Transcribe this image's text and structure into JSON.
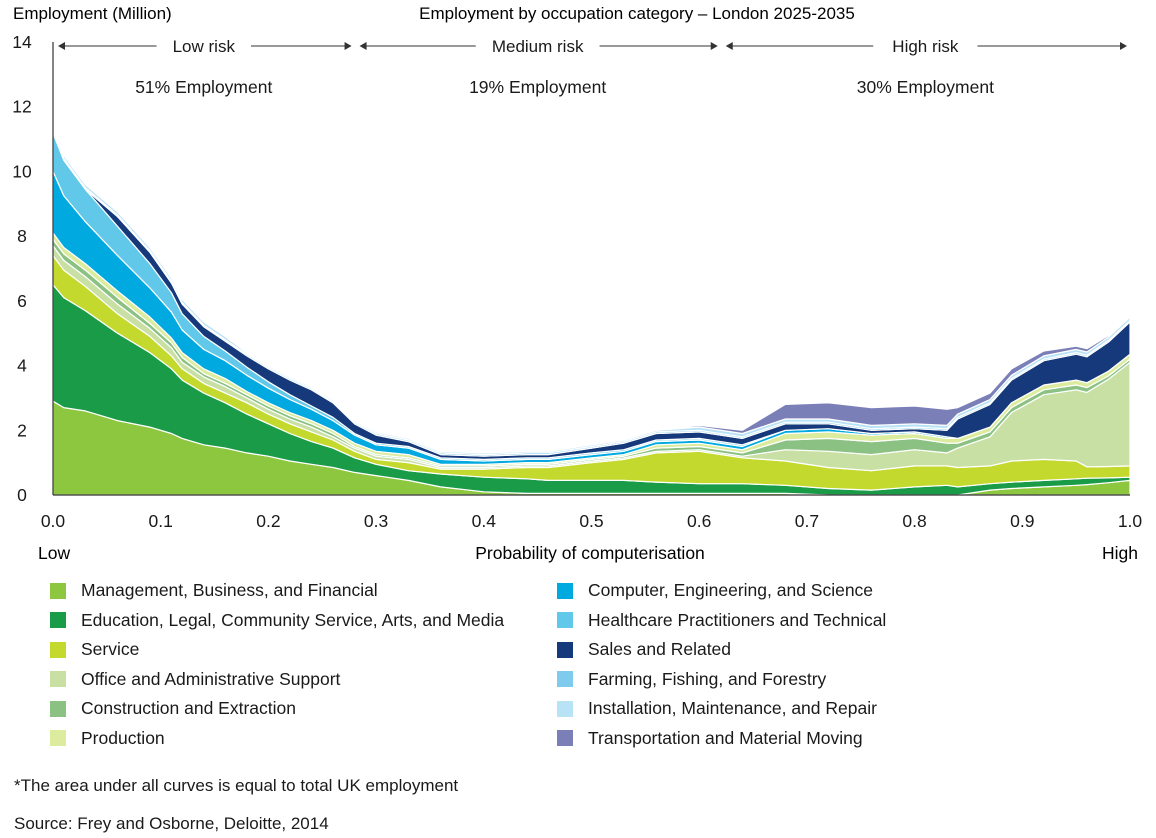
{
  "chart_data": {
    "type": "area",
    "title": "Employment by occupation category – London 2025-2035",
    "ylabel": "Employment (Million)",
    "xlabel": "Probability of computerisation",
    "x_low_label": "Low",
    "x_high_label": "High",
    "xlim": [
      0,
      1
    ],
    "ylim": [
      0,
      14
    ],
    "x_ticks": [
      "0.0",
      "0.1",
      "0.2",
      "0.3",
      "0.4",
      "0.5",
      "0.6",
      "0.7",
      "0.8",
      "0.9",
      "1.0"
    ],
    "y_ticks": [
      "0",
      "2",
      "4",
      "6",
      "8",
      "10",
      "12",
      "14"
    ],
    "grid": false,
    "stacked": true,
    "risk_bands": [
      {
        "label": "Low risk",
        "from": 0.0,
        "to": 0.28,
        "share": "51% Employment"
      },
      {
        "label": "Medium risk",
        "from": 0.28,
        "to": 0.62,
        "share": "19% Employment"
      },
      {
        "label": "High risk",
        "from": 0.62,
        "to": 1.0,
        "share": "30% Employment"
      }
    ],
    "x": [
      0.0,
      0.01,
      0.03,
      0.06,
      0.09,
      0.11,
      0.12,
      0.14,
      0.16,
      0.18,
      0.2,
      0.22,
      0.24,
      0.26,
      0.28,
      0.3,
      0.33,
      0.36,
      0.4,
      0.44,
      0.46,
      0.5,
      0.53,
      0.56,
      0.6,
      0.64,
      0.68,
      0.72,
      0.76,
      0.8,
      0.83,
      0.84,
      0.87,
      0.89,
      0.92,
      0.95,
      0.96,
      0.98,
      1.0
    ],
    "series": [
      {
        "name": "Management, Business, and Financial",
        "color": "#8dc63f",
        "values": [
          2.9,
          2.7,
          2.6,
          2.3,
          2.1,
          1.9,
          1.75,
          1.55,
          1.45,
          1.3,
          1.2,
          1.05,
          0.95,
          0.85,
          0.7,
          0.6,
          0.45,
          0.25,
          0.1,
          0.05,
          0.05,
          0.05,
          0.05,
          0.05,
          0.05,
          0.05,
          0.05,
          0.0,
          0.0,
          0.0,
          0.0,
          0.0,
          0.15,
          0.2,
          0.25,
          0.3,
          0.32,
          0.38,
          0.45
        ]
      },
      {
        "name": "Education, Legal, Community Service, Arts, and Media",
        "color": "#1a9b48",
        "values": [
          3.6,
          3.4,
          3.1,
          2.7,
          2.3,
          2.0,
          1.8,
          1.6,
          1.4,
          1.2,
          1.0,
          0.85,
          0.7,
          0.6,
          0.45,
          0.35,
          0.3,
          0.4,
          0.45,
          0.45,
          0.4,
          0.4,
          0.4,
          0.35,
          0.3,
          0.3,
          0.25,
          0.2,
          0.15,
          0.25,
          0.3,
          0.25,
          0.2,
          0.2,
          0.2,
          0.2,
          0.2,
          0.15,
          0.1
        ]
      },
      {
        "name": "Service",
        "color": "#c4d92e",
        "values": [
          0.9,
          0.85,
          0.75,
          0.6,
          0.5,
          0.4,
          0.35,
          0.3,
          0.3,
          0.35,
          0.3,
          0.3,
          0.3,
          0.25,
          0.2,
          0.15,
          0.25,
          0.15,
          0.25,
          0.35,
          0.4,
          0.55,
          0.65,
          0.9,
          1.0,
          0.8,
          0.75,
          0.65,
          0.6,
          0.65,
          0.6,
          0.6,
          0.55,
          0.65,
          0.65,
          0.55,
          0.35,
          0.35,
          0.35
        ]
      },
      {
        "name": "Office and Administrative Support",
        "color": "#c9e0a4",
        "values": [
          0.3,
          0.3,
          0.3,
          0.3,
          0.25,
          0.25,
          0.2,
          0.2,
          0.2,
          0.15,
          0.15,
          0.15,
          0.15,
          0.1,
          0.1,
          0.1,
          0.1,
          0.05,
          0.05,
          0.05,
          0.05,
          0.05,
          0.05,
          0.05,
          0.05,
          0.05,
          0.35,
          0.5,
          0.5,
          0.5,
          0.4,
          0.6,
          0.9,
          1.5,
          2.0,
          2.2,
          2.3,
          2.7,
          3.2
        ]
      },
      {
        "name": "Construction and Extraction",
        "color": "#8bc283",
        "values": [
          0.2,
          0.2,
          0.2,
          0.2,
          0.15,
          0.15,
          0.15,
          0.1,
          0.1,
          0.1,
          0.1,
          0.1,
          0.1,
          0.1,
          0.05,
          0.05,
          0.05,
          0.05,
          0.05,
          0.05,
          0.05,
          0.05,
          0.05,
          0.1,
          0.1,
          0.1,
          0.3,
          0.4,
          0.4,
          0.35,
          0.3,
          0.15,
          0.15,
          0.15,
          0.15,
          0.15,
          0.15,
          0.1,
          0.1
        ]
      },
      {
        "name": "Production",
        "color": "#dcec9f",
        "values": [
          0.2,
          0.2,
          0.2,
          0.2,
          0.2,
          0.15,
          0.15,
          0.15,
          0.15,
          0.1,
          0.1,
          0.1,
          0.1,
          0.1,
          0.1,
          0.1,
          0.1,
          0.05,
          0.05,
          0.05,
          0.05,
          0.05,
          0.05,
          0.1,
          0.1,
          0.1,
          0.2,
          0.2,
          0.2,
          0.15,
          0.15,
          0.15,
          0.15,
          0.15,
          0.15,
          0.15,
          0.15,
          0.15,
          0.15
        ]
      },
      {
        "name": "Computer, Engineering, and Science",
        "color": "#00a9e0",
        "values": [
          1.9,
          1.6,
          1.3,
          1.1,
          0.9,
          0.8,
          0.7,
          0.6,
          0.55,
          0.5,
          0.45,
          0.4,
          0.35,
          0.3,
          0.25,
          0.2,
          0.2,
          0.15,
          0.1,
          0.1,
          0.1,
          0.1,
          0.1,
          0.1,
          0.1,
          0.1,
          0.1,
          0.1,
          0.05,
          0.05,
          0.05,
          0.0,
          0.0,
          0.0,
          0.0,
          0.0,
          0.0,
          0.0,
          0.0
        ]
      },
      {
        "name": "Healthcare Practitioners and Technical",
        "color": "#62c8ea",
        "values": [
          1.2,
          1.1,
          1.0,
          0.9,
          0.75,
          0.6,
          0.5,
          0.4,
          0.3,
          0.25,
          0.2,
          0.15,
          0.1,
          0.1,
          0.05,
          0.05,
          0.05,
          0.05,
          0.05,
          0.05,
          0.05,
          0.05,
          0.05,
          0.05,
          0.05,
          0.05,
          0.0,
          0.0,
          0.0,
          0.0,
          0.0,
          0.0,
          0.0,
          0.0,
          0.0,
          0.0,
          0.0,
          0.0,
          0.0
        ]
      },
      {
        "name": "Sales and Related",
        "color": "#15397a",
        "values": [
          0.0,
          0.0,
          0.0,
          0.3,
          0.35,
          0.3,
          0.3,
          0.3,
          0.3,
          0.35,
          0.4,
          0.45,
          0.5,
          0.45,
          0.3,
          0.25,
          0.15,
          0.1,
          0.1,
          0.1,
          0.1,
          0.15,
          0.2,
          0.2,
          0.2,
          0.2,
          0.2,
          0.15,
          0.1,
          0.1,
          0.2,
          0.6,
          0.7,
          0.7,
          0.75,
          0.8,
          0.8,
          0.9,
          1.0
        ]
      },
      {
        "name": "Farming, Fishing, and Forestry",
        "color": "#7ecbee",
        "values": [
          0.05,
          0.05,
          0.05,
          0.05,
          0.05,
          0.05,
          0.05,
          0.05,
          0.05,
          0.05,
          0.05,
          0.05,
          0.05,
          0.05,
          0.05,
          0.05,
          0.05,
          0.05,
          0.05,
          0.05,
          0.05,
          0.05,
          0.05,
          0.05,
          0.05,
          0.05,
          0.05,
          0.05,
          0.05,
          0.05,
          0.05,
          0.05,
          0.05,
          0.05,
          0.05,
          0.05,
          0.05,
          0.05,
          0.05
        ]
      },
      {
        "name": "Installation, Maintenance, and Repair",
        "color": "#b8e2f5",
        "values": [
          0.1,
          0.1,
          0.1,
          0.1,
          0.1,
          0.1,
          0.1,
          0.1,
          0.1,
          0.05,
          0.05,
          0.05,
          0.05,
          0.05,
          0.05,
          0.05,
          0.05,
          0.05,
          0.05,
          0.05,
          0.05,
          0.05,
          0.05,
          0.05,
          0.1,
          0.1,
          0.1,
          0.1,
          0.1,
          0.1,
          0.1,
          0.1,
          0.1,
          0.1,
          0.1,
          0.1,
          0.1,
          0.1,
          0.1
        ]
      },
      {
        "name": "Transportation and Material Moving",
        "color": "#7b7fb8",
        "values": [
          0.0,
          0.0,
          0.0,
          0.0,
          0.0,
          0.0,
          0.0,
          0.0,
          0.0,
          0.0,
          0.0,
          0.0,
          0.0,
          0.0,
          0.0,
          0.0,
          0.0,
          0.0,
          0.0,
          0.0,
          0.0,
          0.0,
          0.0,
          0.0,
          0.05,
          0.1,
          0.45,
          0.5,
          0.55,
          0.55,
          0.5,
          0.2,
          0.2,
          0.2,
          0.15,
          0.1,
          0.1,
          0.05,
          0.05
        ]
      }
    ]
  },
  "footnote": "*The area under all curves is equal to total UK employment",
  "source": "Source: Frey and Osborne, Deloitte, 2014"
}
